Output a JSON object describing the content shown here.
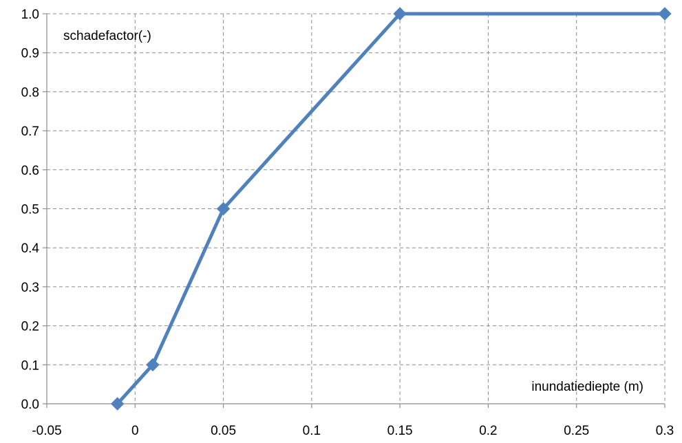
{
  "chart_data": {
    "type": "line",
    "title": "",
    "ylabel": "schadefactor(-)",
    "xlabel": "inundatiediepte (m)",
    "xlim": [
      -0.05,
      0.3
    ],
    "ylim": [
      0,
      1.0
    ],
    "x_ticks": [
      "-0.05",
      "0",
      "0.05",
      "0.1",
      "0.15",
      "0.2",
      "0.25",
      "0.3"
    ],
    "y_ticks": [
      "0.0",
      "0.1",
      "0.2",
      "0.3",
      "0.4",
      "0.5",
      "0.6",
      "0.7",
      "0.8",
      "0.9",
      "1.0"
    ],
    "grid": true,
    "series": [
      {
        "color": "#4f81bd",
        "marker": "diamond",
        "x": [
          -0.01,
          0.01,
          0.05,
          0.15,
          0.3
        ],
        "y": [
          0.0,
          0.1,
          0.5,
          1.0,
          1.0
        ]
      }
    ]
  }
}
